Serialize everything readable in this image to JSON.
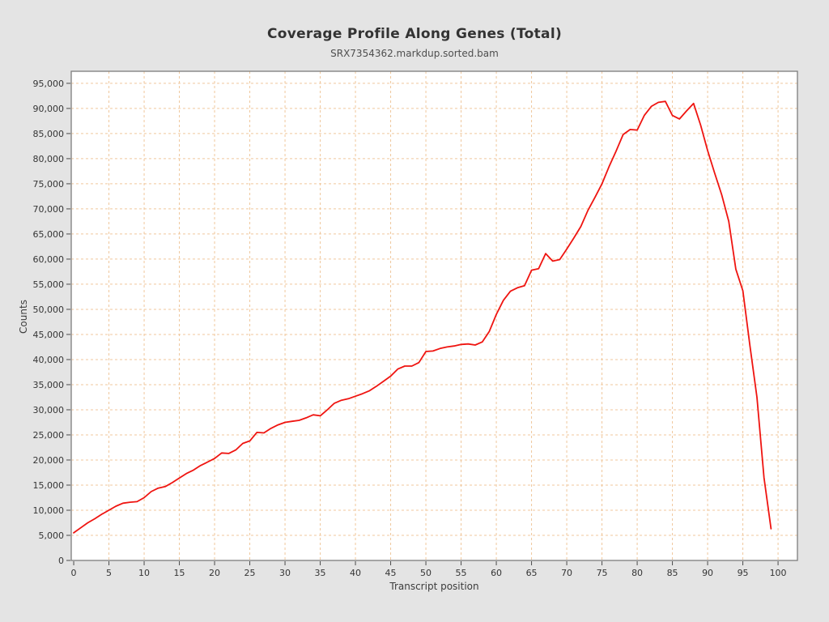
{
  "header": {
    "title": "Coverage Profile Along Genes (Total)",
    "subtitle": "SRX7354362.markdup.sorted.bam"
  },
  "colors": {
    "page_background": "#e4e4e4",
    "plot_background": "#ffffff",
    "plot_border": "#7d7d7d",
    "grid": "#f0c79c",
    "tick": "#4a4a4a",
    "tick_label": "#343434",
    "series_line": "#ef1410"
  },
  "chart_data": {
    "type": "line",
    "title": "Coverage Profile Along Genes (Total)",
    "subtitle": "SRX7354362.markdup.sorted.bam",
    "xlabel": "Transcript position",
    "ylabel": "Counts",
    "xlim": [
      -0.35,
      102.75
    ],
    "ylim": [
      0,
      97400
    ],
    "x_ticks": [
      0,
      5,
      10,
      15,
      20,
      25,
      30,
      35,
      40,
      45,
      50,
      55,
      60,
      65,
      70,
      75,
      80,
      85,
      90,
      95,
      100
    ],
    "y_ticks": [
      0,
      5000,
      10000,
      15000,
      20000,
      25000,
      30000,
      35000,
      40000,
      45000,
      50000,
      55000,
      60000,
      65000,
      70000,
      75000,
      80000,
      85000,
      90000,
      95000
    ],
    "grid": "dashed orange, horizontal and vertical at every tick",
    "legend": "none",
    "series": [
      {
        "name": "SRX7354362.markdup.sorted.bam",
        "color": "#ef1410",
        "x": [
          0,
          1,
          2,
          3,
          4,
          5,
          6,
          7,
          8,
          9,
          10,
          11,
          12,
          13,
          14,
          15,
          16,
          17,
          18,
          19,
          20,
          21,
          22,
          23,
          24,
          25,
          26,
          27,
          28,
          29,
          30,
          31,
          32,
          33,
          34,
          35,
          36,
          37,
          38,
          39,
          40,
          41,
          42,
          43,
          44,
          45,
          46,
          47,
          48,
          49,
          50,
          51,
          52,
          53,
          54,
          55,
          56,
          57,
          58,
          59,
          60,
          61,
          62,
          63,
          64,
          65,
          66,
          67,
          68,
          69,
          70,
          71,
          72,
          73,
          74,
          75,
          76,
          77,
          78,
          79,
          80,
          81,
          82,
          83,
          84,
          85,
          86,
          87,
          88,
          89,
          90,
          91,
          92,
          93,
          94,
          95,
          96,
          97,
          98,
          99
        ],
        "values": [
          5500,
          6500,
          7500,
          8300,
          9200,
          10000,
          10800,
          11400,
          11600,
          11700,
          12500,
          13700,
          14400,
          14700,
          15500,
          16400,
          17300,
          18000,
          18900,
          19600,
          20300,
          21400,
          21300,
          22000,
          23300,
          23800,
          25500,
          25400,
          26300,
          27000,
          27500,
          27700,
          27900,
          28400,
          29000,
          28800,
          30000,
          31300,
          31900,
          32200,
          32700,
          33200,
          33800,
          34700,
          35700,
          36700,
          38100,
          38700,
          38700,
          39400,
          41600,
          41700,
          42200,
          42500,
          42700,
          43000,
          43100,
          42900,
          43500,
          45600,
          49000,
          51800,
          53600,
          54300,
          54700,
          57800,
          58100,
          61100,
          59600,
          59900,
          62000,
          64200,
          66500,
          69700,
          72300,
          75000,
          78400,
          81500,
          84800,
          85800,
          85700,
          88600,
          90400,
          91200,
          91400,
          88600,
          87900,
          89500,
          91000,
          86700,
          81600,
          77100,
          72800,
          67500,
          58000,
          53700,
          42800,
          32500,
          16500,
          6300
        ]
      }
    ]
  }
}
